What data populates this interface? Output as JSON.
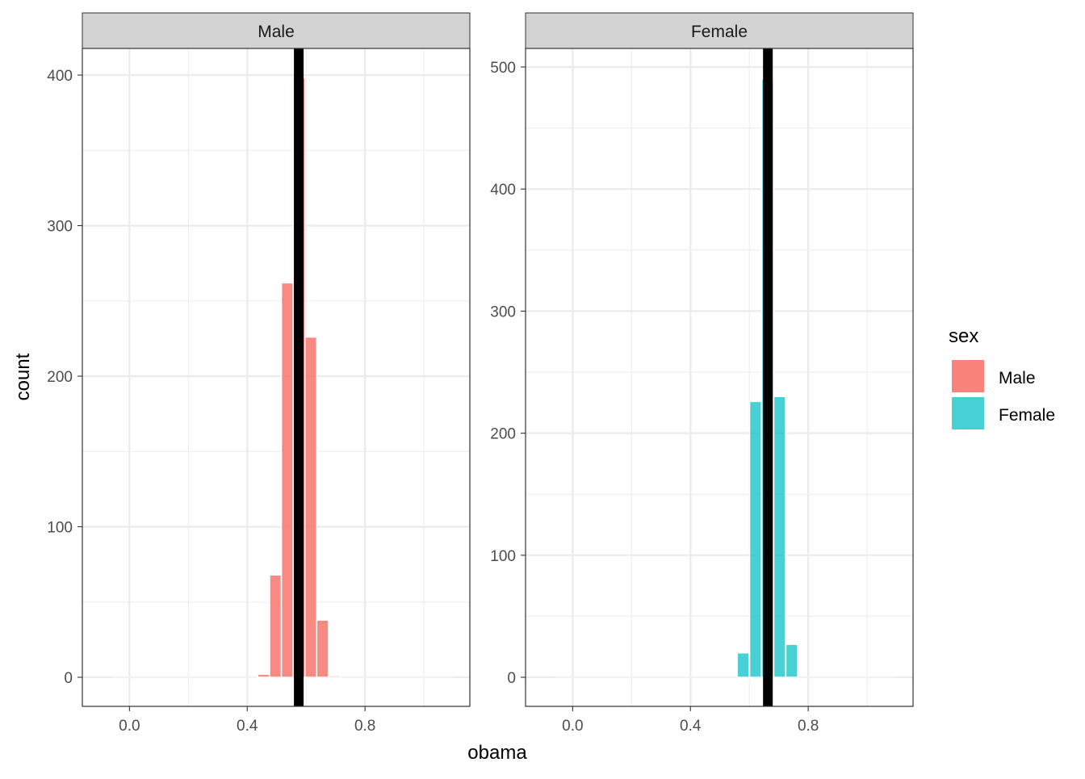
{
  "chart_data": [
    {
      "type": "bar",
      "panel": "Male",
      "xlabel": "obama",
      "ylabel": "count",
      "xlim": [
        -0.16,
        1.156
      ],
      "ylim": [
        -19.3,
        417.7
      ],
      "x_ticks": [
        0.0,
        0.4,
        0.8
      ],
      "x_tick_labels": [
        "0.0",
        "0.4",
        "0.8"
      ],
      "y_ticks": [
        0,
        100,
        200,
        300,
        400
      ],
      "y_tick_labels": [
        "0",
        "100",
        "200",
        "300",
        "400"
      ],
      "bin_width": 0.04,
      "x": [
        0.456,
        0.496,
        0.536,
        0.576,
        0.616,
        0.656,
        0.697
      ],
      "values": [
        2,
        68,
        262,
        398,
        226,
        38,
        1
      ],
      "zero_range": [
        -0.06,
        1.1
      ],
      "vline": 0.575,
      "color": "#F8766D"
    },
    {
      "type": "bar",
      "panel": "Female",
      "xlabel": "obama",
      "ylabel": "count",
      "xlim": [
        -0.16,
        1.156
      ],
      "ylim": [
        -23.8,
        515.2
      ],
      "x_ticks": [
        0.0,
        0.4,
        0.8
      ],
      "x_tick_labels": [
        "0.0",
        "0.4",
        "0.8"
      ],
      "y_ticks": [
        0,
        100,
        200,
        300,
        400,
        500
      ],
      "y_tick_labels": [
        "0",
        "100",
        "200",
        "300",
        "400",
        "500"
      ],
      "bin_width": 0.04,
      "x": [
        0.579,
        0.621,
        0.662,
        0.703,
        0.744
      ],
      "values": [
        20,
        226,
        490,
        230,
        27
      ],
      "zero_range": [
        -0.06,
        1.1
      ],
      "vline": 0.663,
      "color": "#00BFC4"
    }
  ],
  "axis": {
    "xlabel": "obama",
    "ylabel": "count"
  },
  "legend": {
    "title": "sex",
    "position": "right",
    "items": [
      {
        "label": "Male",
        "color": "#F8766D"
      },
      {
        "label": "Female",
        "color": "#00BFC4"
      }
    ]
  }
}
